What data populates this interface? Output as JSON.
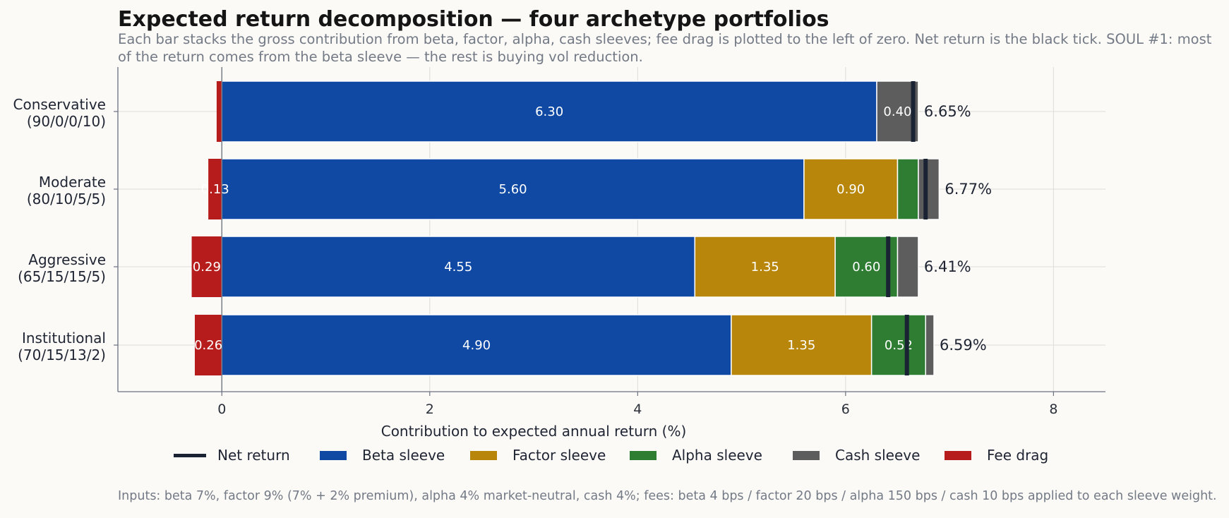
{
  "title": "Expected return decomposition — four archetype portfolios",
  "subtitle": "Each bar stacks the gross contribution from beta, factor, alpha, cash sleeves; fee drag is plotted to the left of zero. Net return is the black tick. SOUL #1: most of the return comes from the beta sleeve — the rest is buying vol reduction.",
  "footnote": "Inputs: beta 7%, factor 9% (7% + 2% premium), alpha 4% market-neutral, cash 4%; fees: beta 4 bps / factor 20 bps / alpha 150 bps / cash 10 bps applied to each sleeve weight.",
  "colors": {
    "beta": "#0f49a4",
    "factor": "#b8860b",
    "alpha": "#2e7d32",
    "cash": "#5d5d5d",
    "fee": "#b71c1c",
    "net": "#1a2333",
    "background": "#fbfaf6"
  },
  "chart_data": {
    "type": "bar",
    "orientation": "horizontal",
    "stacked": true,
    "xlabel": "Contribution to expected annual return (%)",
    "xlim": [
      -1,
      8.5
    ],
    "xticks": [
      0,
      2,
      4,
      6,
      8
    ],
    "grid": true,
    "legend_position": "bottom",
    "categories": [
      [
        "Conservative",
        "(90/0/0/10)"
      ],
      [
        "Moderate",
        "(80/10/5/5)"
      ],
      [
        "Aggressive",
        "(65/15/15/5)"
      ],
      [
        "Institutional",
        "(70/15/13/2)"
      ]
    ],
    "series": [
      {
        "name": "Beta sleeve",
        "key": "beta",
        "values": [
          6.3,
          5.6,
          4.55,
          4.9
        ]
      },
      {
        "name": "Factor sleeve",
        "key": "factor",
        "values": [
          0.0,
          0.9,
          1.35,
          1.35
        ]
      },
      {
        "name": "Alpha sleeve",
        "key": "alpha",
        "values": [
          0.0,
          0.2,
          0.6,
          0.52
        ]
      },
      {
        "name": "Cash sleeve",
        "key": "cash",
        "values": [
          0.4,
          0.2,
          0.2,
          0.08
        ]
      },
      {
        "name": "Fee drag",
        "key": "fee",
        "values": [
          -0.05,
          -0.13,
          -0.29,
          -0.26
        ]
      }
    ],
    "bar_labels": [
      {
        "beta": "6.30",
        "cash": "0.40"
      },
      {
        "fee": "0.13",
        "beta": "5.60",
        "factor": "0.90"
      },
      {
        "fee": "0.29",
        "beta": "4.55",
        "factor": "1.35",
        "alpha": "0.60"
      },
      {
        "fee": "0.26",
        "beta": "4.90",
        "factor": "1.35",
        "alpha": "0.52"
      }
    ],
    "net_return": [
      6.65,
      6.77,
      6.41,
      6.59
    ],
    "net_labels": [
      "6.65%",
      "6.77%",
      "6.41%",
      "6.59%"
    ],
    "legend": [
      "Net return",
      "Beta sleeve",
      "Factor sleeve",
      "Alpha sleeve",
      "Cash sleeve",
      "Fee drag"
    ]
  }
}
